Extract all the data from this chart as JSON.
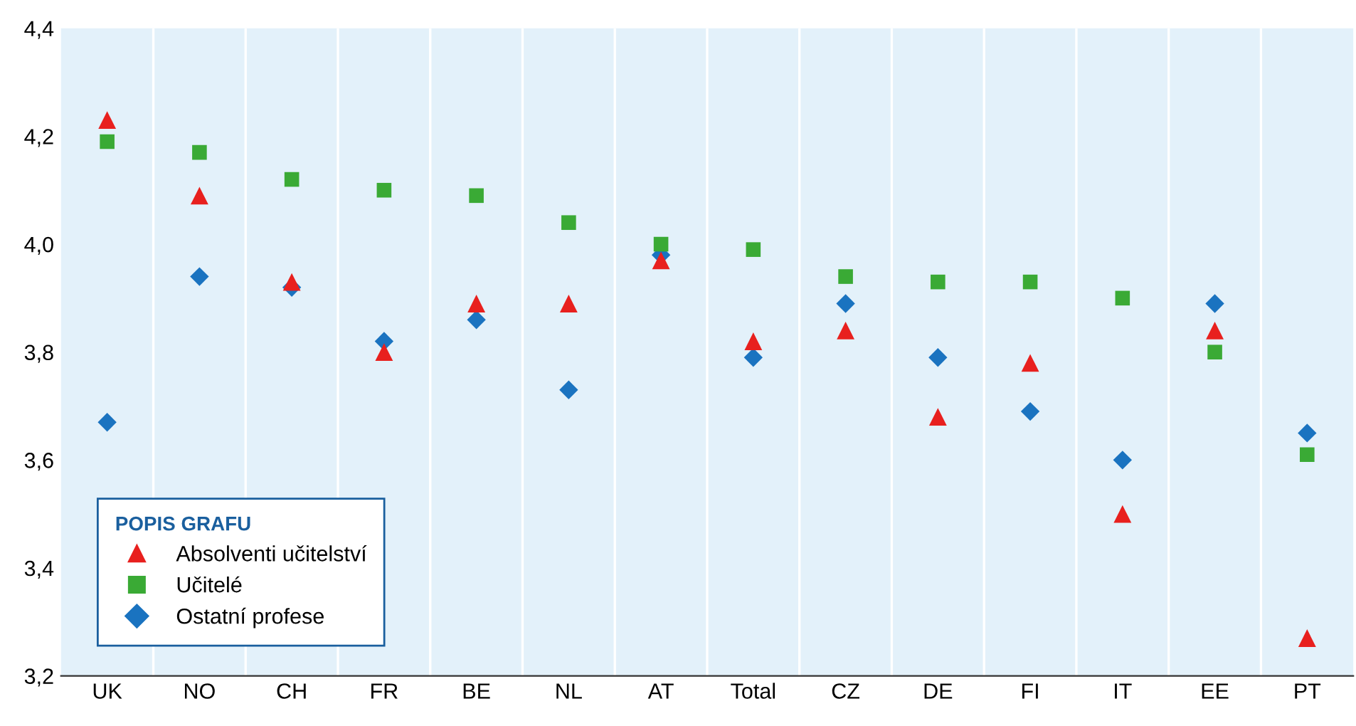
{
  "chart_data": {
    "type": "scatter",
    "categories": [
      "UK",
      "NO",
      "CH",
      "FR",
      "BE",
      "NL",
      "AT",
      "Total",
      "CZ",
      "DE",
      "FI",
      "IT",
      "EE",
      "PT"
    ],
    "series": [
      {
        "name": "Absolventi učitelství",
        "color": "#e8201e",
        "marker": "triangle",
        "values": [
          4.23,
          4.09,
          3.93,
          3.8,
          3.89,
          3.89,
          3.97,
          3.82,
          3.84,
          3.68,
          3.78,
          3.5,
          3.84,
          3.27
        ]
      },
      {
        "name": "Učitelé",
        "color": "#3aaa35",
        "marker": "square",
        "values": [
          4.19,
          4.17,
          4.12,
          4.1,
          4.09,
          4.04,
          4.0,
          3.99,
          3.94,
          3.93,
          3.93,
          3.9,
          3.8,
          3.61
        ]
      },
      {
        "name": "Ostatní profese",
        "color": "#1a73c0",
        "marker": "diamond",
        "values": [
          3.67,
          3.94,
          3.92,
          3.82,
          3.86,
          3.73,
          3.98,
          3.79,
          3.89,
          3.79,
          3.69,
          3.6,
          3.89,
          3.65
        ]
      }
    ],
    "ylim": [
      3.2,
      4.4
    ],
    "yticks": [
      {
        "value": 3.2,
        "label": "3,2"
      },
      {
        "value": 3.4,
        "label": "3,4"
      },
      {
        "value": 3.6,
        "label": "3,6"
      },
      {
        "value": 3.8,
        "label": "3,8"
      },
      {
        "value": 4.0,
        "label": "4,0"
      },
      {
        "value": 4.2,
        "label": "4,2"
      },
      {
        "value": 4.4,
        "label": "4,4"
      }
    ],
    "grid": "x",
    "legend": "bottom left",
    "legend_title": "POPIS GRAFU"
  }
}
